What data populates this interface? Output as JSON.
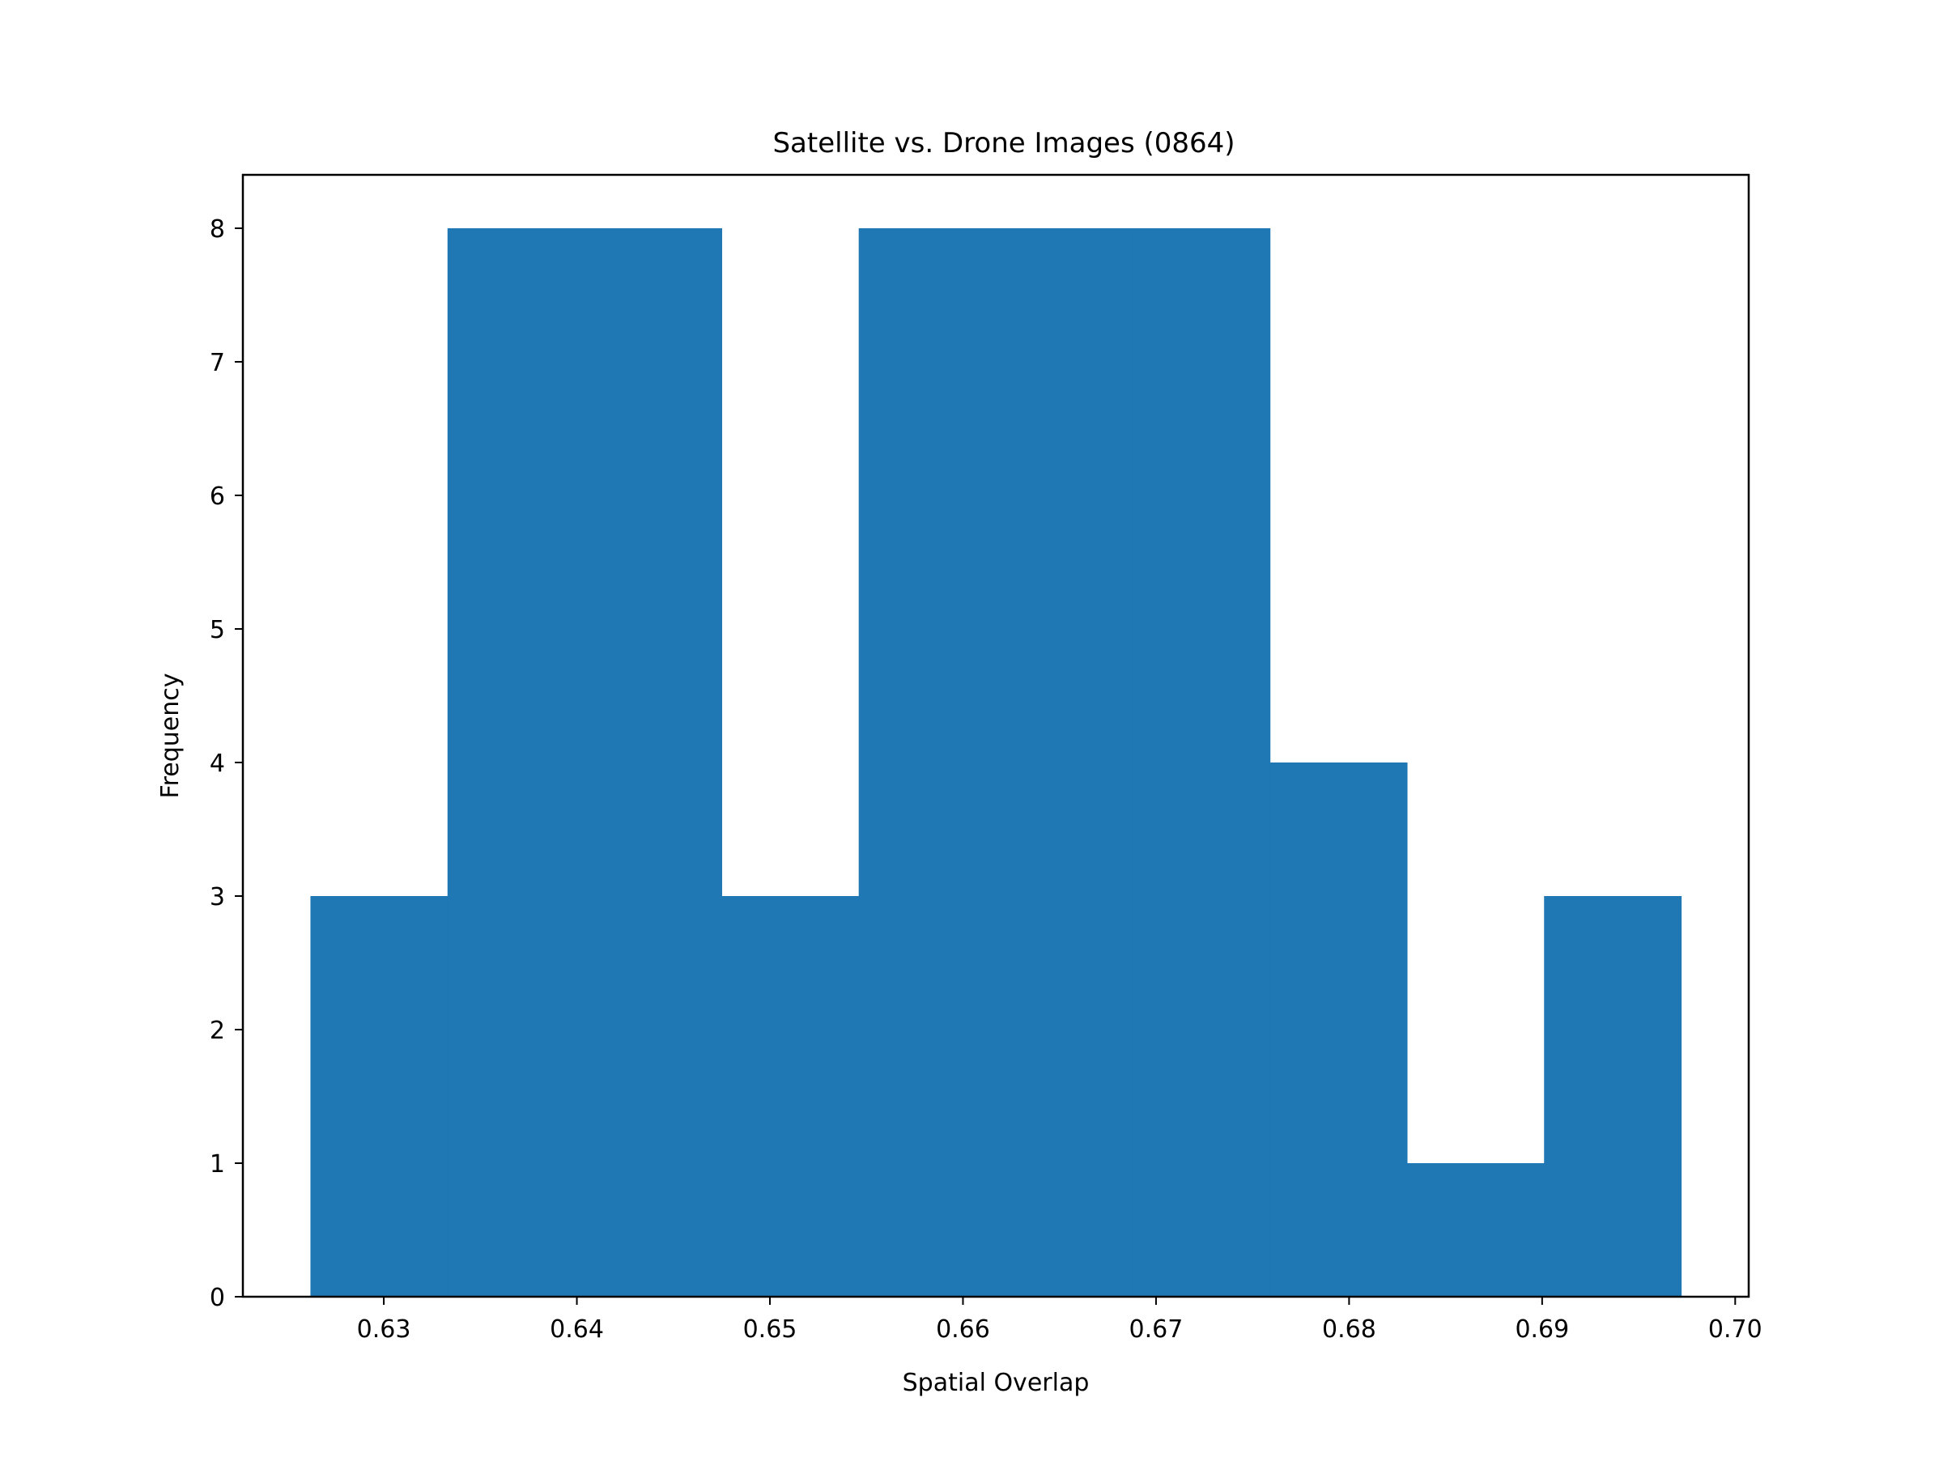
{
  "chart_data": {
    "type": "bar",
    "title": "Satellite vs. Drone Images (0864)",
    "xlabel": "Spatial Overlap",
    "ylabel": "Frequency",
    "bin_edges": [
      0.6262,
      0.6333,
      0.6404,
      0.6475,
      0.6546,
      0.6617,
      0.6688,
      0.6759,
      0.683,
      0.6901,
      0.6972
    ],
    "values": [
      3,
      8,
      8,
      3,
      8,
      8,
      8,
      4,
      1,
      3
    ],
    "xlim": [
      0.6227,
      0.7007
    ],
    "ylim": [
      0,
      8.4
    ],
    "xticks": [
      0.63,
      0.64,
      0.65,
      0.66,
      0.67,
      0.68,
      0.69,
      0.7
    ],
    "xtick_labels": [
      "0.63",
      "0.64",
      "0.65",
      "0.66",
      "0.67",
      "0.68",
      "0.69",
      "0.70"
    ],
    "yticks": [
      0,
      1,
      2,
      3,
      4,
      5,
      6,
      7,
      8
    ],
    "ytick_labels": [
      "0",
      "1",
      "2",
      "3",
      "4",
      "5",
      "6",
      "7",
      "8"
    ],
    "grid": false,
    "bar_color": "#1f77b4"
  }
}
